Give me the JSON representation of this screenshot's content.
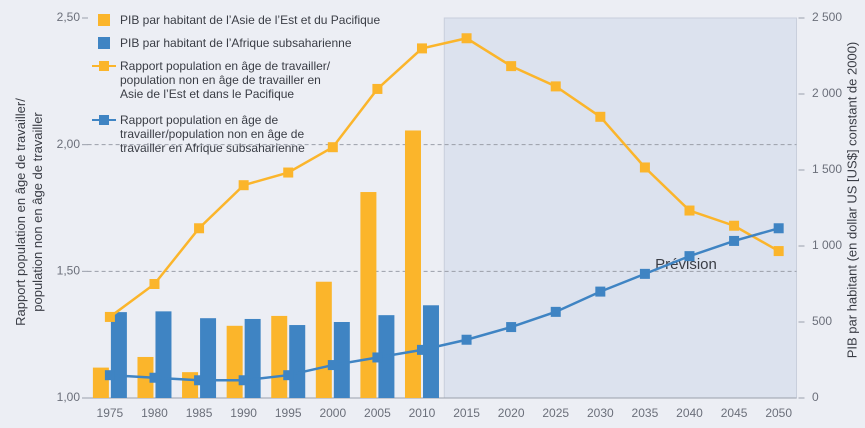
{
  "chart_data": {
    "type": "bar",
    "x": [
      1975,
      1980,
      1985,
      1990,
      1995,
      2000,
      2005,
      2010,
      2015,
      2020,
      2025,
      2030,
      2035,
      2040,
      2045,
      2050
    ],
    "xlim": [
      1972.5,
      2052
    ],
    "xticks": [
      1975,
      1980,
      1985,
      1990,
      1995,
      2000,
      2005,
      2010,
      2015,
      2020,
      2025,
      2030,
      2035,
      2040,
      2045,
      2050
    ],
    "ylabel": [
      "Rapport population en âge de travailler/",
      "population non en âge de travailler"
    ],
    "y2label": "PIB par habitant (en dollar US [US$] constant de 2000)",
    "ylim": [
      1.0,
      2.5
    ],
    "yticks": [
      {
        "value": 1.0,
        "label": "1,00"
      },
      {
        "value": 1.5,
        "label": "1,50"
      },
      {
        "value": 2.0,
        "label": "2,00"
      },
      {
        "value": 2.5,
        "label": "2,50"
      }
    ],
    "y2lim": [
      0,
      2500
    ],
    "y2ticks": [
      0,
      500,
      {
        "value": 1000,
        "label": "1 000"
      },
      {
        "value": 1500,
        "label": "1 500"
      },
      {
        "value": 2000,
        "label": "2 000"
      },
      {
        "value": 2500,
        "label": "2 500"
      }
    ],
    "grid": true,
    "annotation": "Prévision",
    "shaded_from": 2012.5,
    "series": [
      {
        "name": "PIB par habitant de l’Asie de l’Est et du Pacifique",
        "type": "bar",
        "axis": "y2",
        "color": "#fbb52b",
        "values": [
          200,
          270,
          170,
          475,
          540,
          765,
          1355,
          1760,
          null,
          null,
          null,
          null,
          null,
          null,
          null,
          null
        ]
      },
      {
        "name": "PIB par habitant de l’Afrique subsaharienne",
        "type": "bar",
        "axis": "y2",
        "color": "#3f84c3",
        "values": [
          565,
          570,
          525,
          520,
          480,
          500,
          545,
          610,
          null,
          null,
          null,
          null,
          null,
          null,
          null,
          null
        ]
      },
      {
        "name": "Rapport population en âge de travailler/ population non en âge de travailler en Asie de l’Est et dans le Pacifique",
        "type": "line",
        "axis": "y",
        "color": "#fbb52b",
        "values": [
          1.32,
          1.45,
          1.67,
          1.84,
          1.89,
          1.99,
          2.22,
          2.38,
          2.42,
          2.31,
          2.23,
          2.11,
          1.91,
          1.74,
          1.68,
          1.58
        ]
      },
      {
        "name": "Rapport population en âge de travailler/population non en âge de travailler en Afrique subsaharienne",
        "type": "line",
        "axis": "y",
        "color": "#3f84c3",
        "values": [
          1.09,
          1.08,
          1.07,
          1.07,
          1.09,
          1.13,
          1.16,
          1.19,
          1.23,
          1.28,
          1.34,
          1.42,
          1.49,
          1.56,
          1.62,
          1.67
        ]
      }
    ]
  }
}
